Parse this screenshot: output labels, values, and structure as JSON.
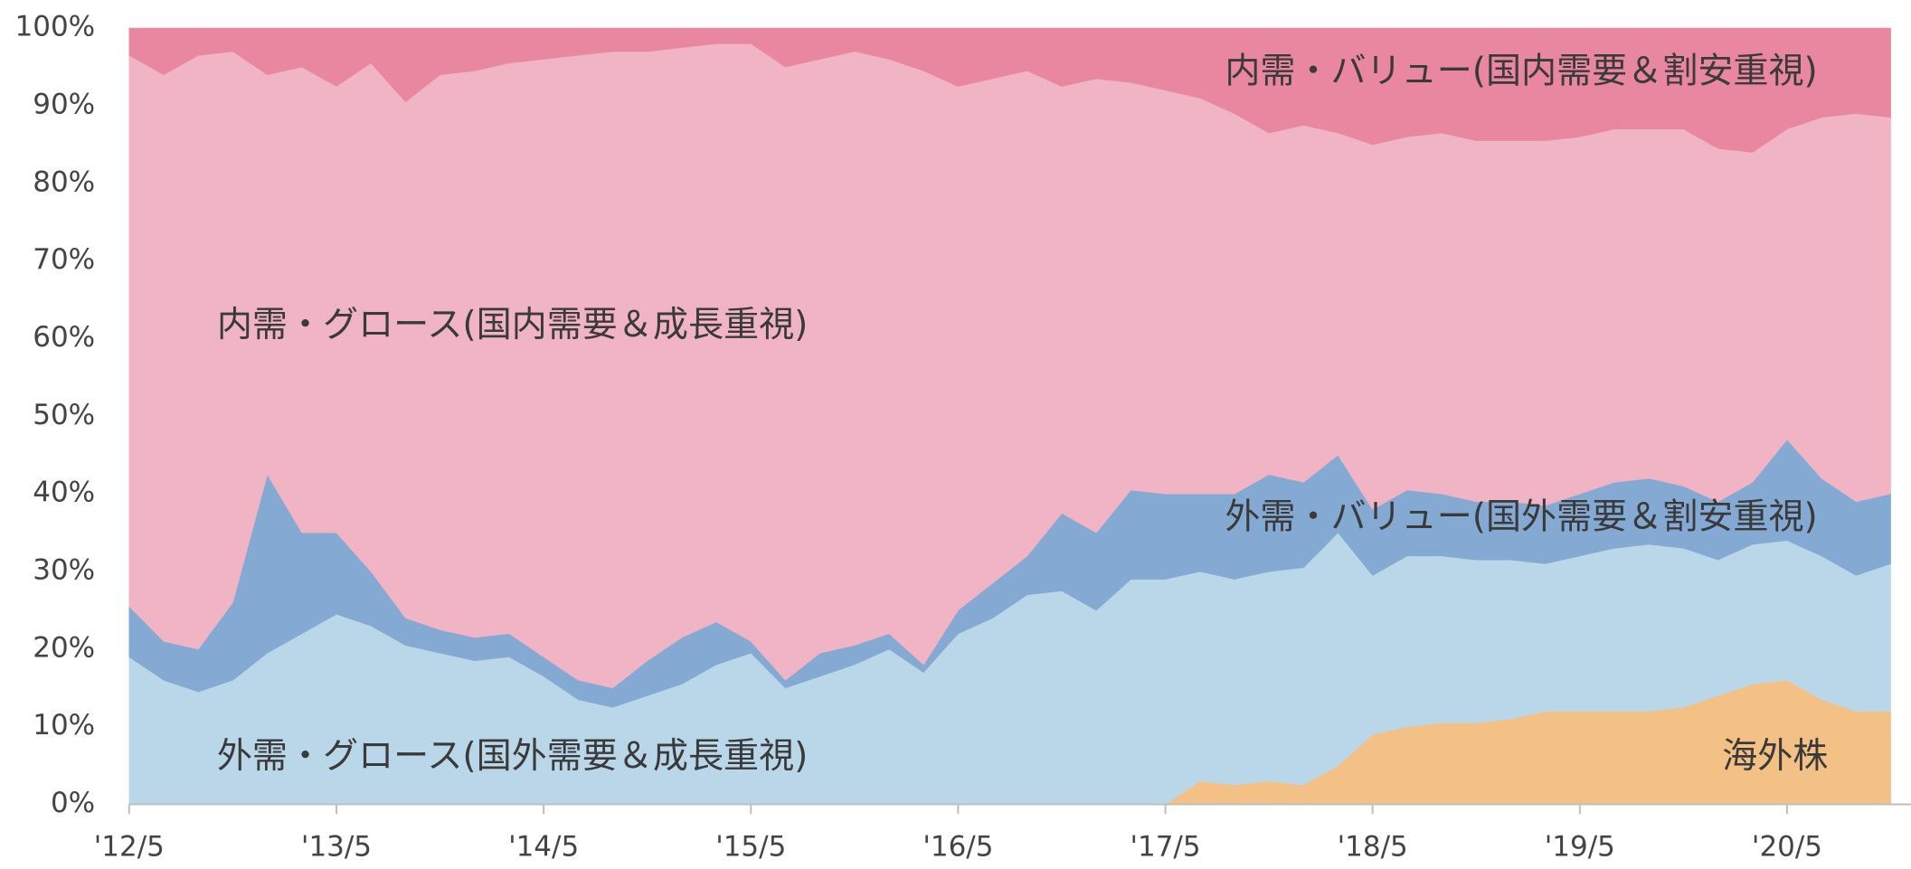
{
  "chart_data": {
    "type": "stacked_area",
    "categories": [
      "'12/5",
      null,
      null,
      null,
      null,
      null,
      "'13/5",
      null,
      null,
      null,
      null,
      null,
      "'14/5",
      null,
      null,
      null,
      null,
      null,
      "'15/5",
      null,
      null,
      null,
      null,
      null,
      "'16/5",
      null,
      null,
      null,
      null,
      null,
      "'17/5",
      null,
      null,
      null,
      null,
      null,
      "'18/5",
      null,
      null,
      null,
      null,
      null,
      "'19/5",
      null,
      null,
      null,
      null,
      null,
      "'20/5",
      null,
      null,
      null
    ],
    "series": [
      {
        "name": "海外株",
        "color": "#f3c086",
        "values": [
          0,
          0,
          0,
          0,
          0,
          0,
          0,
          0,
          0,
          0,
          0,
          0,
          0,
          0,
          0,
          0,
          0,
          0,
          0,
          0,
          0,
          0,
          0,
          0,
          0,
          0,
          0,
          0,
          0,
          0,
          0,
          3,
          2.5,
          3,
          2.5,
          5,
          9,
          10,
          10.5,
          10.5,
          11,
          12,
          12,
          12,
          12,
          12.5,
          14,
          15.5,
          16,
          13.5,
          12,
          12
        ]
      },
      {
        "name": "外需・グロース(国外需要＆成長重視)",
        "color": "#bad7ea",
        "values": [
          19,
          16,
          14.5,
          16,
          19.5,
          22,
          24.5,
          23,
          20.5,
          19.5,
          18.5,
          19,
          16.5,
          13.5,
          12.5,
          14,
          15.5,
          18,
          19.5,
          15,
          16.5,
          18,
          20,
          17,
          22,
          24,
          27,
          27.5,
          25,
          29,
          29,
          27,
          26.5,
          27,
          28,
          30,
          20.5,
          22,
          21.5,
          21,
          20.5,
          19,
          20,
          21,
          21.5,
          20.5,
          17.5,
          18,
          18,
          18.5,
          17.5,
          19
        ]
      },
      {
        "name": "外需・バリュー(国外需要＆割安重視)",
        "color": "#84a9d3",
        "values": [
          6.5,
          5,
          5.5,
          10,
          23,
          13,
          10.5,
          7,
          3.5,
          3,
          3,
          3,
          2.5,
          2.5,
          2.5,
          4.5,
          6,
          5.5,
          1.5,
          1,
          3,
          2.5,
          2,
          1,
          3,
          4.5,
          5,
          10,
          10,
          11.5,
          11,
          10,
          11,
          12.5,
          11,
          10,
          8.5,
          8.5,
          8,
          7.5,
          7.5,
          7.5,
          8,
          8.5,
          8.5,
          8,
          7.5,
          8,
          13,
          10,
          9.5,
          9
        ]
      },
      {
        "name": "内需・グロース(国内需要＆成長重視)",
        "color": "#f0b4c4",
        "values": [
          71,
          73,
          76.5,
          71,
          51.5,
          60,
          57.5,
          65.5,
          66.5,
          71.5,
          73,
          73.5,
          77,
          80.5,
          82,
          78.5,
          76,
          74.5,
          77,
          79,
          76.5,
          76.5,
          74,
          76.5,
          67.5,
          65,
          62.5,
          55,
          58.5,
          52.5,
          52,
          51,
          49,
          44,
          46,
          41.5,
          47,
          45.5,
          46.5,
          46.5,
          46.5,
          47,
          46,
          45.5,
          45,
          46,
          45.5,
          42.5,
          40,
          46.5,
          50,
          48.5
        ]
      },
      {
        "name": "内需・バリュー(国内需要＆割安重視)",
        "color": "#e8879f",
        "values": [
          3.5,
          6,
          3.5,
          3,
          6,
          5,
          7.5,
          4.5,
          9.5,
          6,
          5.5,
          4.5,
          4,
          3.5,
          3,
          3,
          2.5,
          2,
          2,
          5,
          4,
          3,
          4,
          5.5,
          7.5,
          6.5,
          5.5,
          7.5,
          6.5,
          7,
          8,
          9,
          11,
          13.5,
          12.5,
          13.5,
          15,
          14,
          13.5,
          14.5,
          14.5,
          14.5,
          14,
          13,
          13,
          13,
          15.5,
          16,
          13,
          11.5,
          11,
          11.5
        ]
      }
    ],
    "ylim": [
      0,
      100
    ],
    "yticks": [
      {
        "value": 0,
        "label": "0%"
      },
      {
        "value": 10,
        "label": "10%"
      },
      {
        "value": 20,
        "label": "20%"
      },
      {
        "value": 30,
        "label": "30%"
      },
      {
        "value": 40,
        "label": "40%"
      },
      {
        "value": 50,
        "label": "50%"
      },
      {
        "value": 60,
        "label": "60%"
      },
      {
        "value": 70,
        "label": "70%"
      },
      {
        "value": 80,
        "label": "80%"
      },
      {
        "value": 90,
        "label": "90%"
      },
      {
        "value": 100,
        "label": "100%"
      }
    ]
  }
}
